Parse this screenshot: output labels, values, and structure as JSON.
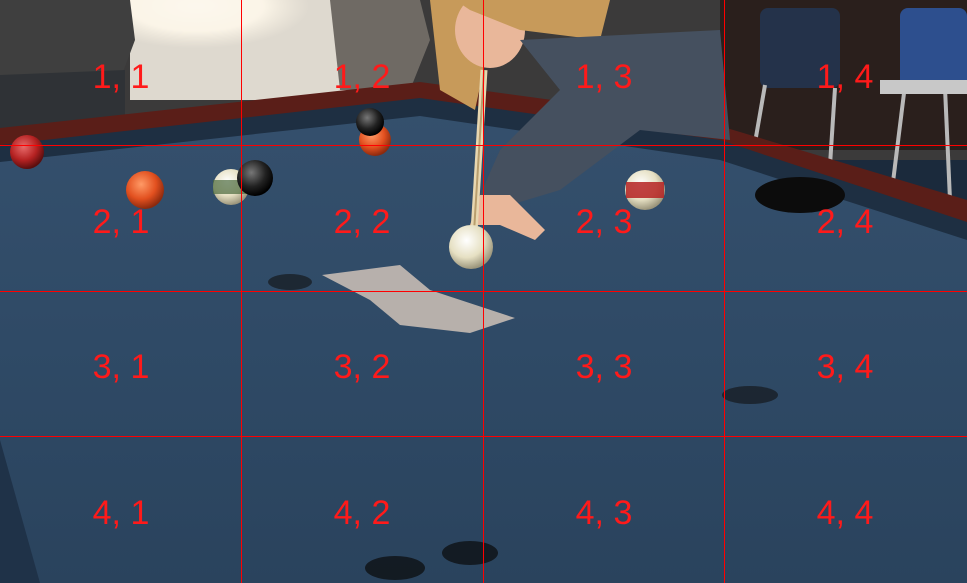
{
  "grid": {
    "rows": 4,
    "cols": 4,
    "line_color": "#ff0000",
    "label_color": "#ff1a1a",
    "labels": [
      [
        "1, 1",
        "1, 2",
        "1, 3",
        "1, 4"
      ],
      [
        "2, 1",
        "2, 2",
        "2, 3",
        "2, 4"
      ],
      [
        "3, 1",
        "3, 2",
        "3, 3",
        "3, 4"
      ],
      [
        "4, 1",
        "4, 2",
        "4, 3",
        "4, 4"
      ]
    ]
  },
  "photo": {
    "subject": "person-lining-up-pool-shot",
    "colors": {
      "felt": "#2f4a66",
      "felt_dark": "#1f3248",
      "rail": "#1e2f42",
      "wood": "#5a1e18",
      "cue_ball": "#e8e2c6",
      "window_light": "#fdf8ec",
      "sweater": "#45505f",
      "hair": "#c79a5a",
      "skin": "#e9b79a",
      "chair": "#2d4f8e"
    }
  }
}
